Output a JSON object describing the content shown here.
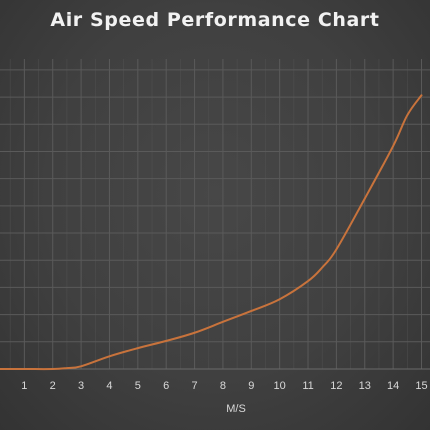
{
  "chart_data": {
    "type": "line",
    "title": "Air Speed Performance Chart",
    "xlabel": "M/S",
    "ylabel": "",
    "x": [
      0,
      1,
      2,
      2.5,
      3,
      4,
      5,
      6,
      7,
      8,
      9,
      10,
      11,
      11.5,
      12,
      13,
      14,
      14.5,
      15
    ],
    "series": [
      {
        "name": "",
        "values": [
          0,
          0,
          0,
          0.05,
          0.15,
          0.7,
          1.15,
          1.55,
          2.0,
          2.6,
          3.2,
          3.85,
          4.85,
          5.6,
          6.6,
          9.4,
          12.3,
          14.0,
          15.1
        ],
        "color": "#c8733c"
      }
    ],
    "xticks": [
      "1",
      "2",
      "3",
      "4",
      "5",
      "6",
      "7",
      "8",
      "9",
      "10",
      "11",
      "12",
      "13",
      "14",
      "15"
    ],
    "xlim": [
      0,
      15.3
    ],
    "ylim": [
      0,
      17.1
    ],
    "grid": true,
    "legend": "none",
    "colors": {
      "background": "#404040",
      "grid": "#5a5a5a",
      "line": "#c8733c",
      "text": "#d9d9d9",
      "title": "#f2f2f2"
    }
  }
}
